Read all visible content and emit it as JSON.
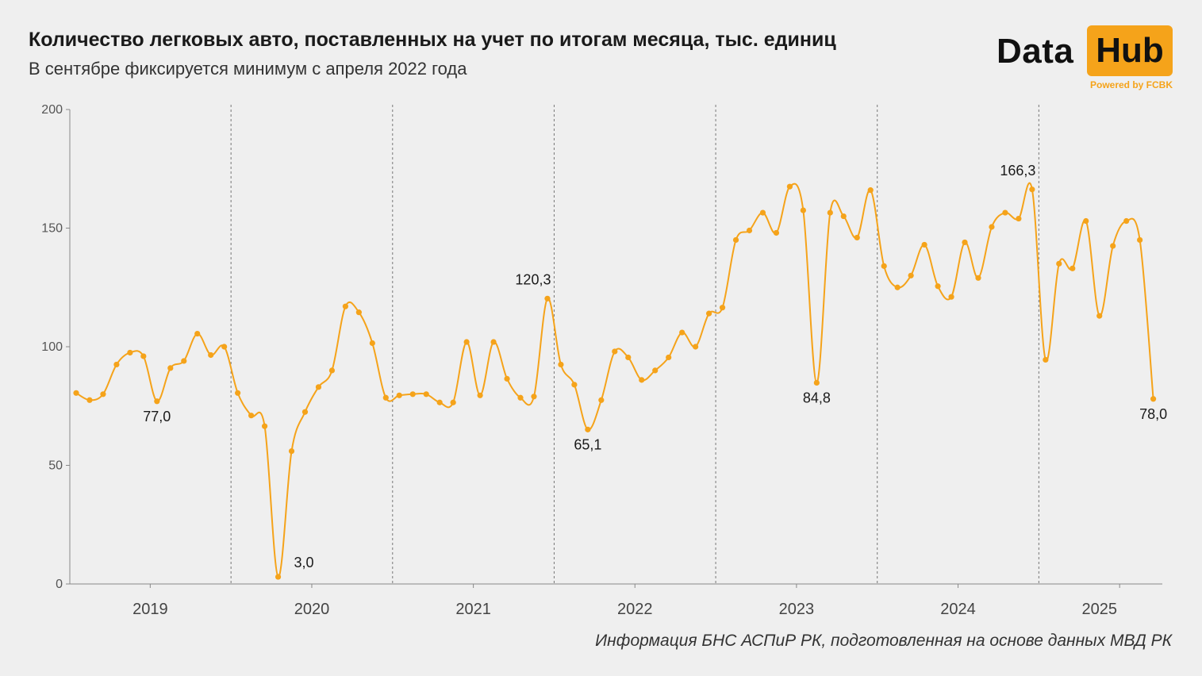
{
  "header": {
    "title": "Количество легковых авто, поставленных на учет по итогам месяца, тыс. единиц",
    "subtitle": "В сентябре фиксируется минимум с апреля 2022 года"
  },
  "logo": {
    "data_text": "Data",
    "hub_text": "Hub",
    "powered": "Powered by FCBK"
  },
  "footer": {
    "source": "Информация БНС АСПиР РК, подготовленная на основе данных МВД РК"
  },
  "colors": {
    "line": "#f5a31a",
    "background": "#efefef",
    "axis": "#888888"
  },
  "chart_data": {
    "type": "line",
    "title": "Количество легковых авто, поставленных на учет по итогам месяца, тыс. единиц",
    "subtitle": "В сентябре фиксируется минимум с апреля 2022 года",
    "xlabel": "",
    "ylabel": "",
    "ylim": [
      0,
      200
    ],
    "yticks": [
      0,
      50,
      100,
      150,
      200
    ],
    "year_labels": [
      "2019",
      "2020",
      "2021",
      "2022",
      "2023",
      "2024",
      "2025"
    ],
    "grid": false,
    "legend": "none",
    "series": [
      {
        "values": [
          80.5,
          77.5,
          80,
          92.5,
          97.5,
          96,
          77.0,
          91,
          94,
          105.5,
          96.5,
          100,
          80.5,
          71,
          66.5,
          3.0,
          56,
          72.5,
          83,
          90,
          117,
          114.5,
          101.5,
          78.5,
          79.5,
          80,
          80,
          76.5,
          76.5,
          102,
          79.5,
          102,
          86.5,
          78.5,
          79,
          120.3,
          92.5,
          84,
          65.1,
          77.5,
          98,
          95.5,
          86,
          90,
          95.5,
          106,
          100,
          114,
          116.5,
          145,
          149,
          156.5,
          148,
          167.5,
          157.5,
          84.8,
          156.5,
          155,
          146,
          166,
          134,
          125,
          130,
          143,
          125.5,
          121,
          144,
          129,
          150.5,
          156.5,
          154,
          166.3,
          94.5,
          135,
          133,
          153,
          113,
          142.5,
          153,
          145,
          78.0
        ]
      }
    ],
    "annotations": [
      {
        "index": 6,
        "label": "77,0",
        "position": "below"
      },
      {
        "index": 15,
        "label": "3,0",
        "position": "right"
      },
      {
        "index": 35,
        "label": "120,3",
        "position": "above"
      },
      {
        "index": 38,
        "label": "65,1",
        "position": "below"
      },
      {
        "index": 55,
        "label": "84,8",
        "position": "below"
      },
      {
        "index": 71,
        "label": "166,3",
        "position": "above"
      },
      {
        "index": 80,
        "label": "78,0",
        "position": "below"
      }
    ]
  }
}
